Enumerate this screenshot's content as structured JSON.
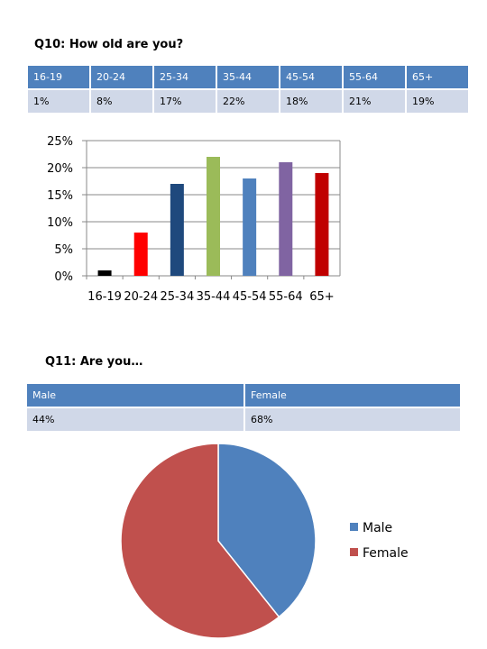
{
  "q10": {
    "title": "Q10: How old are you?",
    "headers": [
      "16-19",
      "20-24",
      "25-34",
      "35-44",
      "45-54",
      "55-64",
      "65+"
    ],
    "values": [
      "1%",
      "8%",
      "17%",
      "22%",
      "18%",
      "21%",
      "19%"
    ]
  },
  "q11": {
    "title": "Q11: Are you…",
    "headers": [
      "Male",
      "Female"
    ],
    "values": [
      "44%",
      "68%"
    ]
  },
  "chart_data": [
    {
      "type": "bar",
      "categories": [
        "16-19",
        "20-24",
        "25-34",
        "35-44",
        "45-54",
        "55-64",
        "65+"
      ],
      "values": [
        1,
        8,
        17,
        22,
        18,
        21,
        19
      ],
      "colors": [
        "#000000",
        "#ff0000",
        "#1f497d",
        "#9bbb59",
        "#4f81bd",
        "#8064a2",
        "#c00000"
      ],
      "yticks": [
        "0%",
        "5%",
        "10%",
        "15%",
        "20%",
        "25%"
      ],
      "ylim": [
        0,
        25
      ],
      "grid": true,
      "legend": "none"
    },
    {
      "type": "pie",
      "labels": [
        "Male",
        "Female"
      ],
      "values": [
        44,
        68
      ],
      "colors": [
        "#4f81bd",
        "#c0504d"
      ],
      "legend": "right"
    }
  ]
}
